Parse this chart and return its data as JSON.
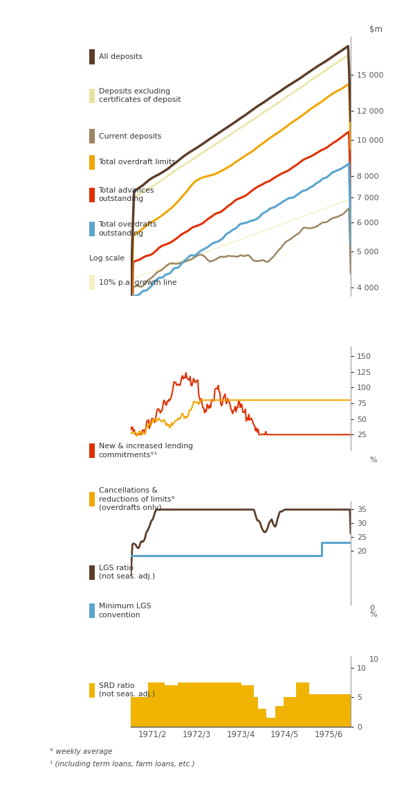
{
  "background_color": "#ffffff",
  "c_all_dep": "#5C3D2A",
  "c_dep_excl": "#E8E4A0",
  "c_curr_dep": "#9C8560",
  "c_od_limits": "#F0A500",
  "c_advances": "#E03000",
  "c_overdrafts": "#5BA4CF",
  "c_growth": "#F5F0C0",
  "c_srd": "#F0B400",
  "panel1_yticks": [
    4000,
    5000,
    6000,
    7000,
    8000,
    10000,
    12000,
    15000
  ],
  "panel1_ytick_labels": [
    "4 000",
    "5 000",
    "6 000",
    "7 000",
    "8 000",
    "10 000",
    "12 000",
    "15 000"
  ],
  "panel2_yticks": [
    25,
    50,
    75,
    100,
    125,
    150
  ],
  "panel2_ytick_labels": [
    "25",
    "50",
    "75",
    "100",
    "125",
    "150"
  ],
  "panel3_yticks": [
    20,
    25,
    30,
    35
  ],
  "panel3_ytick_labels": [
    "20",
    "25",
    "30",
    "35"
  ],
  "panel4_yticks": [
    0,
    5,
    10
  ],
  "panel4_ytick_labels": [
    "0",
    "5",
    "10"
  ],
  "xtick_labels": [
    "1971/2",
    "1972/3",
    "1973/4",
    "1974/5",
    "1975/6"
  ],
  "footnote1": "° weekly average",
  "footnote2": "¹ (including term loans, farm loans, etc.)"
}
